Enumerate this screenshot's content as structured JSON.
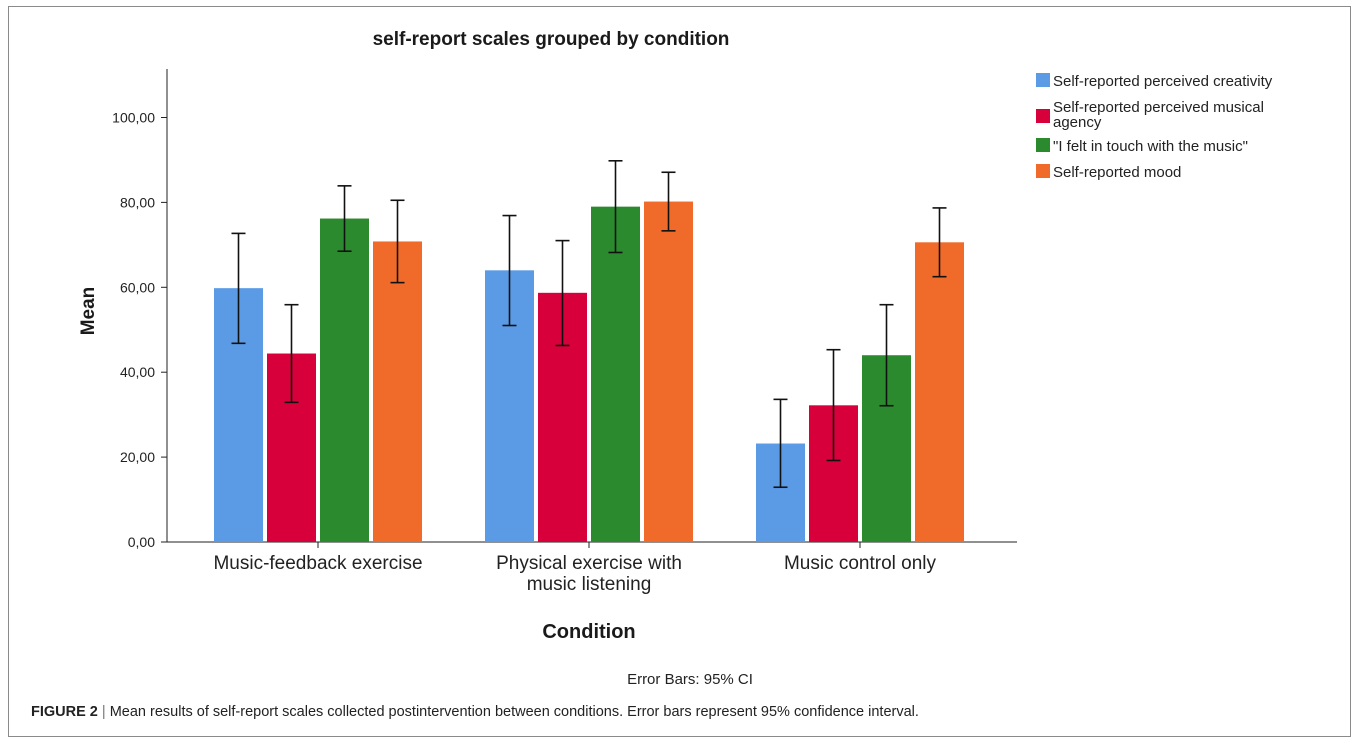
{
  "chart_data": {
    "type": "bar",
    "title": "self-report scales grouped by condition",
    "xlabel": "Condition",
    "ylabel": "Mean",
    "ylim": [
      0,
      110
    ],
    "yticks": [
      "0,00",
      "20,00",
      "40,00",
      "60,00",
      "80,00",
      "100,00"
    ],
    "ytick_values": [
      0,
      20,
      40,
      60,
      80,
      100
    ],
    "categories": [
      [
        "Music-feedback exercise"
      ],
      [
        "Physical exercise with",
        "music listening"
      ],
      [
        "Music control only"
      ]
    ],
    "legend_position": "top-right",
    "series": [
      {
        "name": "Self-reported perceived creativity",
        "legend_lines": [
          "Self-reported perceived creativity"
        ],
        "color": "#5b9be6",
        "values": [
          59.8,
          64.0,
          23.2
        ],
        "ci_low": [
          46.8,
          51.0,
          12.9
        ],
        "ci_high": [
          72.7,
          76.9,
          33.6
        ]
      },
      {
        "name": "Self-reported perceived musical agency",
        "legend_lines": [
          "Self-reported perceived musical",
          "agency"
        ],
        "color": "#d8003a",
        "values": [
          44.4,
          58.7,
          32.2
        ],
        "ci_low": [
          32.9,
          46.3,
          19.2
        ],
        "ci_high": [
          55.9,
          71.0,
          45.3
        ]
      },
      {
        "name": "\"I felt in touch with the music\"",
        "legend_lines": [
          "\"I felt in touch with the music\""
        ],
        "color": "#2c8a2e",
        "values": [
          76.2,
          79.0,
          44.0
        ],
        "ci_low": [
          68.5,
          68.2,
          32.1
        ],
        "ci_high": [
          83.9,
          89.8,
          55.9
        ]
      },
      {
        "name": "Self-reported mood",
        "legend_lines": [
          "Self-reported mood"
        ],
        "color": "#f06a2a",
        "values": [
          70.8,
          80.2,
          70.6
        ],
        "ci_low": [
          61.1,
          73.3,
          62.5
        ],
        "ci_high": [
          80.5,
          87.1,
          78.7
        ]
      }
    ],
    "note": "Error Bars: 95% CI"
  },
  "caption": {
    "lead": "FIGURE 2",
    "separator": "|",
    "text": " Mean results of self-report scales collected postintervention between conditions. Error bars represent 95% confidence interval."
  }
}
